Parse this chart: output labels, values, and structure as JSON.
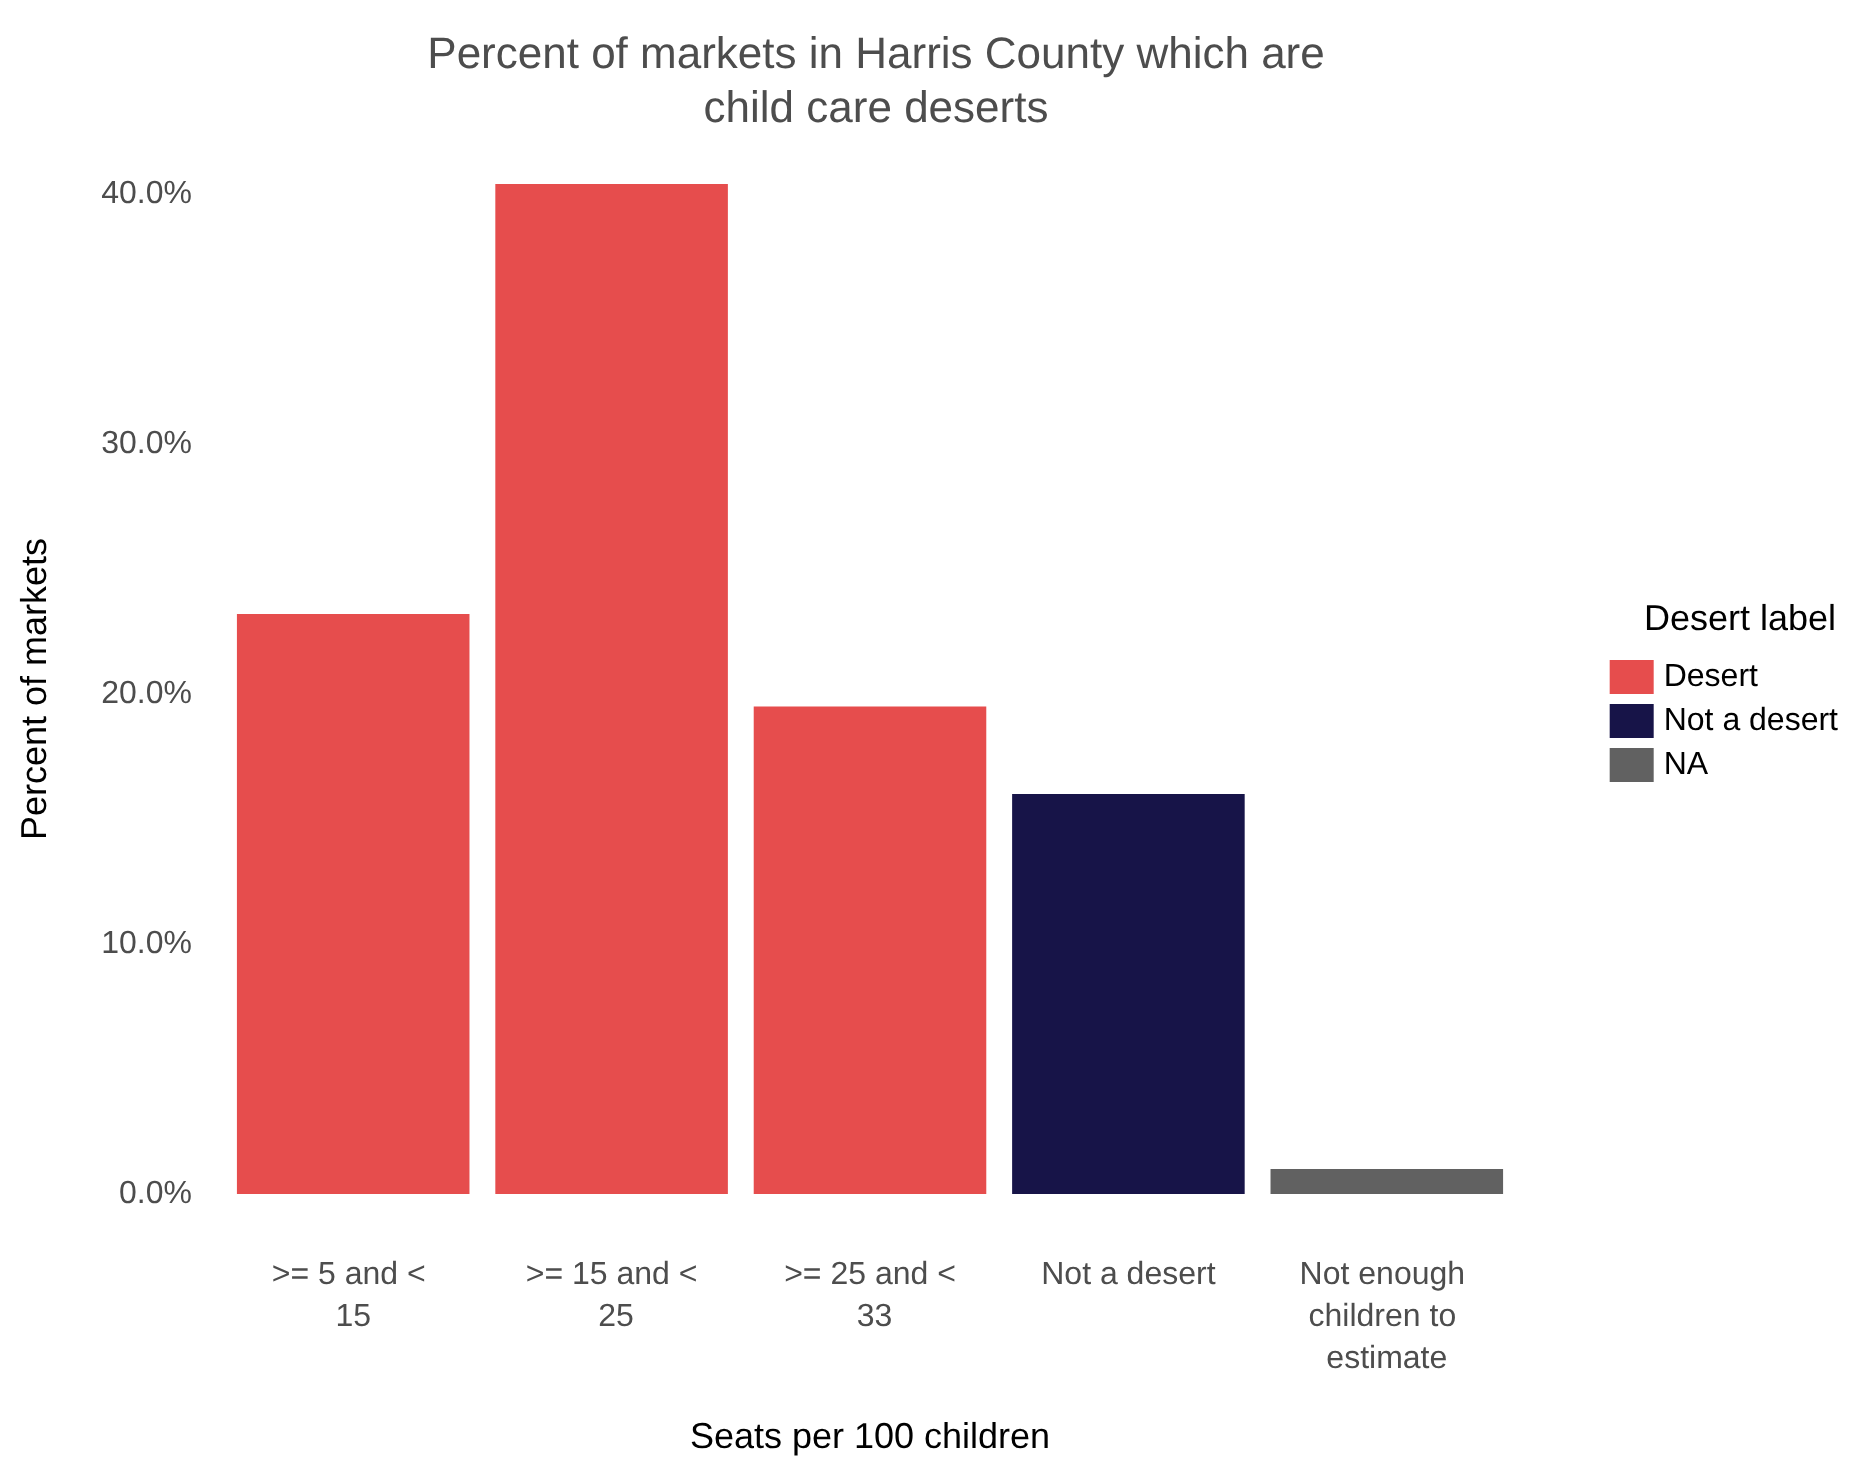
{
  "chart_data": {
    "type": "bar",
    "title": "Percent of markets in Harris County which are\nchild care deserts",
    "xlabel": "Seats per 100 children",
    "ylabel": "Percent of markets",
    "legend_title": "Desert label",
    "categories": [
      ">= 5 and < 15",
      ">= 15 and < 25",
      ">= 25 and < 33",
      "Not a desert",
      "Not enough children to estimate"
    ],
    "series": [
      {
        "name": "Desert",
        "color": "#e64d4d",
        "values": [
          23.2,
          40.4,
          19.5,
          null,
          null
        ]
      },
      {
        "name": "Not a desert",
        "color": "#171448",
        "values": [
          null,
          null,
          null,
          16.0,
          null
        ]
      },
      {
        "name": "NA",
        "color": "#616161",
        "values": [
          null,
          null,
          null,
          null,
          1.0
        ]
      }
    ],
    "yticks": [
      {
        "value": 0,
        "label": "0.0%"
      },
      {
        "value": 10,
        "label": "10.0%"
      },
      {
        "value": 20,
        "label": "20.0%"
      },
      {
        "value": 30,
        "label": "30.0%"
      },
      {
        "value": 40,
        "label": "40.0%"
      }
    ],
    "ylim": [
      0,
      40.4
    ],
    "grid": false,
    "legend": "right"
  }
}
